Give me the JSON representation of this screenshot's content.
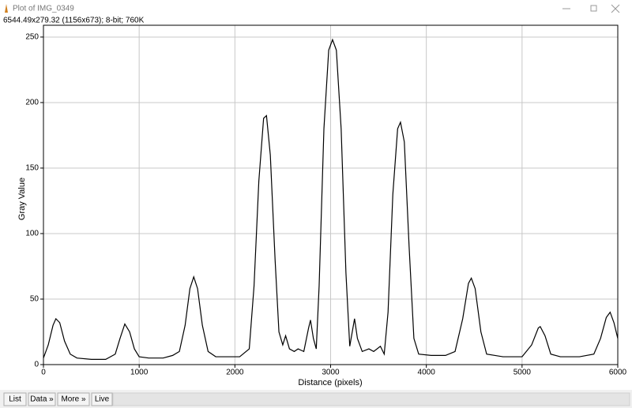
{
  "window": {
    "title": "Plot of IMG_0349",
    "info": "6544.49x279.32  (1156x673); 8-bit; 760K",
    "buttons": [
      "List",
      "Data »",
      "More »",
      "Live"
    ]
  },
  "chart_data": {
    "type": "line",
    "xlabel": "Distance (pixels)",
    "ylabel": "Gray Value",
    "color": "#000000",
    "grid": true,
    "xlim": [
      0,
      6000
    ],
    "ylim": [
      0,
      259
    ],
    "xticks": [
      0,
      1000,
      2000,
      3000,
      4000,
      5000,
      6000
    ],
    "yticks": [
      0,
      50,
      100,
      150,
      200,
      250
    ],
    "x": [
      0,
      50,
      100,
      130,
      170,
      220,
      280,
      350,
      500,
      650,
      750,
      800,
      850,
      900,
      950,
      1000,
      1100,
      1250,
      1350,
      1420,
      1480,
      1530,
      1570,
      1610,
      1660,
      1720,
      1800,
      1950,
      2050,
      2150,
      2200,
      2250,
      2300,
      2330,
      2370,
      2420,
      2460,
      2500,
      2530,
      2570,
      2620,
      2660,
      2720,
      2770,
      2790,
      2820,
      2850,
      2880,
      2930,
      2980,
      3020,
      3060,
      3110,
      3160,
      3200,
      3250,
      3280,
      3330,
      3400,
      3450,
      3520,
      3560,
      3600,
      3650,
      3700,
      3730,
      3770,
      3820,
      3870,
      3920,
      4050,
      4200,
      4300,
      4380,
      4440,
      4470,
      4510,
      4570,
      4630,
      4800,
      5000,
      5100,
      5170,
      5190,
      5240,
      5300,
      5400,
      5600,
      5750,
      5820,
      5880,
      5920,
      5960,
      6000
    ],
    "values": [
      5,
      15,
      30,
      35,
      32,
      18,
      8,
      5,
      4,
      4,
      8,
      20,
      31,
      25,
      12,
      6,
      5,
      5,
      7,
      10,
      30,
      58,
      67,
      58,
      30,
      10,
      6,
      6,
      6,
      12,
      60,
      140,
      188,
      190,
      160,
      80,
      25,
      15,
      22,
      12,
      10,
      12,
      10,
      28,
      34,
      20,
      12,
      60,
      180,
      240,
      248,
      240,
      180,
      70,
      14,
      35,
      20,
      10,
      12,
      10,
      14,
      8,
      40,
      130,
      180,
      185,
      170,
      90,
      20,
      8,
      7,
      7,
      10,
      35,
      62,
      66,
      58,
      25,
      8,
      6,
      6,
      15,
      28,
      29,
      22,
      8,
      6,
      6,
      8,
      20,
      36,
      40,
      32,
      20
    ]
  }
}
